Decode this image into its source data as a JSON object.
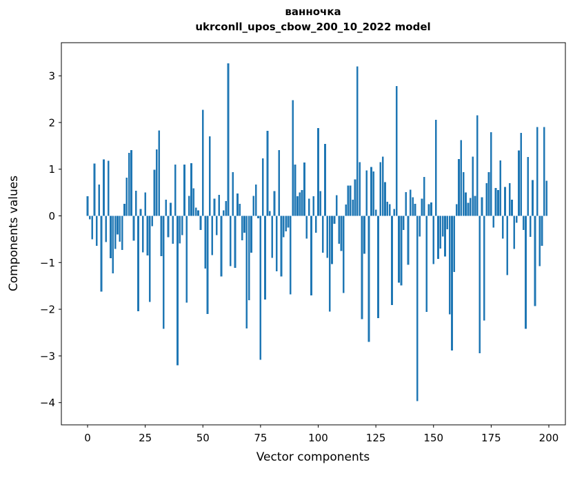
{
  "chart_data": {
    "type": "bar",
    "title": "ванночка",
    "subtitle": "ukrconll_upos_cbow_200_10_2022 model",
    "xlabel": "Vector components",
    "ylabel": "Components values",
    "x_ticks": [
      0,
      25,
      50,
      75,
      100,
      125,
      150,
      175,
      200
    ],
    "y_ticks": [
      3,
      2,
      1,
      0,
      -1,
      -2,
      -3,
      -4
    ],
    "xlim": [
      -11.4,
      207.2
    ],
    "ylim": [
      -4.48,
      3.71
    ],
    "grid": false,
    "legend": "none",
    "bar_color": "#1f77b4",
    "n_components": 200,
    "values": [
      0.42,
      -0.07,
      -0.5,
      1.12,
      -0.64,
      0.67,
      -1.62,
      1.21,
      -0.56,
      1.18,
      -0.91,
      -1.23,
      -0.71,
      -0.4,
      -0.55,
      -0.73,
      0.26,
      0.82,
      1.35,
      1.41,
      -0.53,
      0.54,
      -2.04,
      0.15,
      -0.78,
      0.5,
      -0.85,
      -1.84,
      -0.22,
      0.99,
      1.42,
      1.83,
      -0.86,
      -2.42,
      0.35,
      -0.46,
      0.28,
      -0.6,
      1.1,
      -3.2,
      -0.59,
      -0.41,
      1.1,
      -1.86,
      0.43,
      1.13,
      0.59,
      0.18,
      0.12,
      -0.3,
      2.27,
      -1.13,
      -2.1,
      1.7,
      -0.84,
      0.37,
      -0.41,
      0.45,
      -1.3,
      0.12,
      0.32,
      3.27,
      -1.08,
      0.94,
      -1.11,
      0.48,
      0.26,
      -0.52,
      -0.36,
      -2.41,
      -1.81,
      -0.79,
      0.43,
      0.67,
      -0.05,
      -3.08,
      1.23,
      -1.79,
      1.82,
      0.1,
      -0.9,
      0.53,
      -1.19,
      1.41,
      -1.3,
      -0.46,
      -0.33,
      -0.25,
      -1.68,
      2.48,
      1.1,
      0.42,
      0.5,
      0.55,
      1.14,
      -0.49,
      0.37,
      -1.7,
      0.42,
      -0.36,
      1.88,
      0.53,
      -0.79,
      1.54,
      -0.9,
      -2.05,
      -1.03,
      -0.17,
      0.44,
      -0.6,
      -0.75,
      -1.65,
      0.24,
      0.65,
      0.65,
      0.35,
      0.78,
      3.2,
      1.15,
      -2.21,
      -0.81,
      0.97,
      -2.7,
      1.05,
      0.95,
      0.13,
      -2.19,
      1.15,
      1.27,
      0.72,
      0.3,
      0.25,
      -1.91,
      0.15,
      2.78,
      -1.43,
      -1.49,
      -0.3,
      0.51,
      -1.05,
      0.56,
      0.4,
      0.26,
      -3.97,
      -0.44,
      0.37,
      0.83,
      -2.06,
      0.25,
      0.29,
      -1.03,
      2.06,
      -0.92,
      -0.7,
      -0.44,
      -0.87,
      -0.29,
      -2.11,
      -2.88,
      -1.2,
      0.25,
      1.22,
      1.62,
      0.94,
      0.5,
      0.28,
      0.38,
      1.27,
      0.43,
      2.15,
      -2.94,
      0.4,
      -2.24,
      0.7,
      0.94,
      1.79,
      -0.25,
      0.6,
      0.55,
      1.19,
      -0.49,
      0.62,
      -1.27,
      0.7,
      0.35,
      -0.71,
      -0.15,
      1.4,
      1.78,
      -0.3,
      -2.42,
      1.26,
      -0.45,
      0.77,
      -1.93,
      1.9,
      -1.08,
      -0.64,
      1.9,
      0.75
    ]
  }
}
